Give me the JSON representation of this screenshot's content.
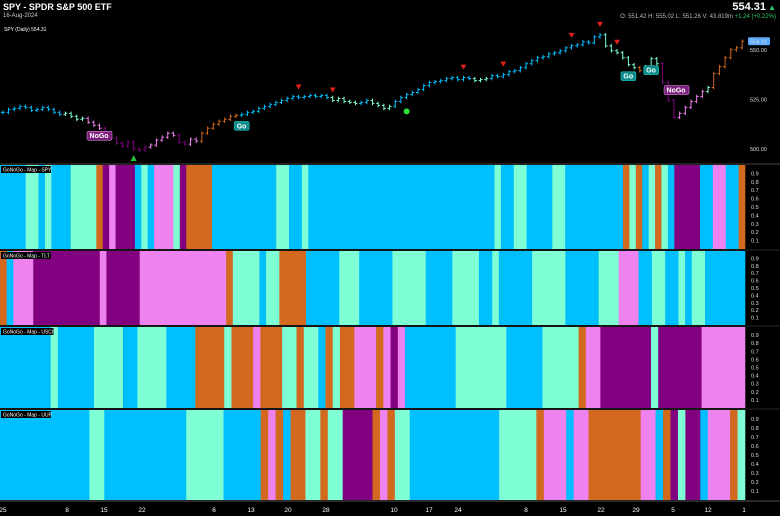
{
  "header": {
    "symbol_title": "SPY - SPDR S&P 500 ETF",
    "date": "16-Aug-2024",
    "last_price": "554.31",
    "ohlc_text": "O: 551.42   H: 555.02   L: 551.26   V: 43.819m",
    "change_text": "+1.24 (+0.22%)"
  },
  "colors": {
    "go_strong": "#00BFFF",
    "go_weak": "#7FFFD4",
    "nogo_strong": "#800080",
    "nogo_weak": "#EE82EE",
    "amber": "#D2691E",
    "bg": "#000000"
  },
  "chart_data": [
    {
      "type": "line",
      "panel": "price",
      "title": "SPY (Daily) 554.31",
      "price_tag": "554.31",
      "y_ticks": [
        500,
        525,
        550
      ],
      "y_tick_labels": [
        "500.00",
        "525.00",
        "550.00"
      ],
      "ylim": [
        493,
        565
      ],
      "x_tick_labels": [
        "25",
        "8",
        "15",
        "22",
        "6",
        "13",
        "20",
        "28",
        "10",
        "17",
        "24",
        "8",
        "15",
        "22",
        "29",
        "5",
        "12",
        "1"
      ],
      "annotations": [
        {
          "text": "NoGo",
          "kind": "nogo",
          "bar": 17
        },
        {
          "text": "Go",
          "kind": "go",
          "bar": 42
        },
        {
          "text": "Go",
          "kind": "go",
          "bar": 110
        },
        {
          "text": "Go",
          "kind": "go",
          "bar": 114
        },
        {
          "text": "NoGo",
          "kind": "nogo",
          "bar": 116
        }
      ],
      "bars": [
        {
          "c": 518.5,
          "k": "go"
        },
        {
          "c": 520.0,
          "k": "go"
        },
        {
          "c": 520.5,
          "k": "go"
        },
        {
          "c": 521.5,
          "k": "go"
        },
        {
          "c": 521.0,
          "k": "go"
        },
        {
          "c": 519.5,
          "k": "go"
        },
        {
          "c": 520.0,
          "k": "go"
        },
        {
          "c": 521.0,
          "k": "go"
        },
        {
          "c": 520.0,
          "k": "go"
        },
        {
          "c": 518.5,
          "k": "go"
        },
        {
          "c": 517.5,
          "k": "go"
        },
        {
          "c": 518.0,
          "k": "gw"
        },
        {
          "c": 516.5,
          "k": "gw"
        },
        {
          "c": 515.0,
          "k": "gw"
        },
        {
          "c": 515.5,
          "k": "gw"
        },
        {
          "c": 513.5,
          "k": "nw"
        },
        {
          "c": 512.0,
          "k": "nw"
        },
        {
          "c": 510.5,
          "k": "nw"
        },
        {
          "c": 508.0,
          "k": "ns"
        },
        {
          "c": 505.5,
          "k": "ns"
        },
        {
          "c": 503.0,
          "k": "ns"
        },
        {
          "c": 501.5,
          "k": "ns"
        },
        {
          "c": 503.5,
          "k": "ns"
        },
        {
          "c": 500.0,
          "k": "ns"
        },
        {
          "c": 499.5,
          "k": "ns"
        },
        {
          "c": 501.0,
          "k": "ns"
        },
        {
          "c": 502.0,
          "k": "nw"
        },
        {
          "c": 504.5,
          "k": "nw"
        },
        {
          "c": 506.0,
          "k": "nw"
        },
        {
          "c": 508.0,
          "k": "nw"
        },
        {
          "c": 507.0,
          "k": "nw"
        },
        {
          "c": 503.5,
          "k": "ns"
        },
        {
          "c": 502.5,
          "k": "ns"
        },
        {
          "c": 505.0,
          "k": "nw"
        },
        {
          "c": 504.0,
          "k": "nw"
        },
        {
          "c": 508.0,
          "k": "am"
        },
        {
          "c": 510.5,
          "k": "am"
        },
        {
          "c": 512.5,
          "k": "am"
        },
        {
          "c": 514.0,
          "k": "am"
        },
        {
          "c": 515.0,
          "k": "am"
        },
        {
          "c": 516.5,
          "k": "am"
        },
        {
          "c": 517.0,
          "k": "am"
        },
        {
          "c": 517.5,
          "k": "go"
        },
        {
          "c": 518.5,
          "k": "go"
        },
        {
          "c": 519.0,
          "k": "go"
        },
        {
          "c": 520.5,
          "k": "go"
        },
        {
          "c": 521.5,
          "k": "go"
        },
        {
          "c": 522.5,
          "k": "go"
        },
        {
          "c": 523.5,
          "k": "go"
        },
        {
          "c": 524.5,
          "k": "go"
        },
        {
          "c": 525.5,
          "k": "go"
        },
        {
          "c": 526.5,
          "k": "go"
        },
        {
          "c": 526.0,
          "k": "go"
        },
        {
          "c": 526.5,
          "k": "go"
        },
        {
          "c": 527.0,
          "k": "go"
        },
        {
          "c": 526.5,
          "k": "go"
        },
        {
          "c": 527.0,
          "k": "go"
        },
        {
          "c": 526.0,
          "k": "go"
        },
        {
          "c": 524.5,
          "k": "gw"
        },
        {
          "c": 525.5,
          "k": "gw"
        },
        {
          "c": 524.0,
          "k": "gw"
        },
        {
          "c": 523.5,
          "k": "gw"
        },
        {
          "c": 523.0,
          "k": "gw"
        },
        {
          "c": 523.5,
          "k": "go"
        },
        {
          "c": 524.5,
          "k": "go"
        },
        {
          "c": 523.0,
          "k": "gw"
        },
        {
          "c": 522.0,
          "k": "gw"
        },
        {
          "c": 520.5,
          "k": "gw"
        },
        {
          "c": 521.5,
          "k": "gw"
        },
        {
          "c": 524.0,
          "k": "go"
        },
        {
          "c": 526.0,
          "k": "go"
        },
        {
          "c": 527.5,
          "k": "go"
        },
        {
          "c": 528.5,
          "k": "go"
        },
        {
          "c": 530.0,
          "k": "go"
        },
        {
          "c": 532.0,
          "k": "go"
        },
        {
          "c": 533.5,
          "k": "go"
        },
        {
          "c": 534.0,
          "k": "go"
        },
        {
          "c": 534.5,
          "k": "go"
        },
        {
          "c": 535.5,
          "k": "go"
        },
        {
          "c": 536.0,
          "k": "go"
        },
        {
          "c": 535.0,
          "k": "go"
        },
        {
          "c": 536.0,
          "k": "go"
        },
        {
          "c": 535.5,
          "k": "go"
        },
        {
          "c": 534.5,
          "k": "gw"
        },
        {
          "c": 535.0,
          "k": "gw"
        },
        {
          "c": 535.5,
          "k": "gw"
        },
        {
          "c": 537.0,
          "k": "go"
        },
        {
          "c": 536.5,
          "k": "go"
        },
        {
          "c": 537.5,
          "k": "go"
        },
        {
          "c": 539.0,
          "k": "go"
        },
        {
          "c": 539.5,
          "k": "go"
        },
        {
          "c": 541.0,
          "k": "go"
        },
        {
          "c": 543.0,
          "k": "go"
        },
        {
          "c": 544.5,
          "k": "go"
        },
        {
          "c": 546.0,
          "k": "go"
        },
        {
          "c": 546.5,
          "k": "go"
        },
        {
          "c": 548.0,
          "k": "go"
        },
        {
          "c": 548.5,
          "k": "go"
        },
        {
          "c": 549.5,
          "k": "go"
        },
        {
          "c": 551.0,
          "k": "go"
        },
        {
          "c": 552.0,
          "k": "go"
        },
        {
          "c": 552.5,
          "k": "go"
        },
        {
          "c": 554.0,
          "k": "go"
        },
        {
          "c": 553.5,
          "k": "go"
        },
        {
          "c": 556.5,
          "k": "go"
        },
        {
          "c": 557.5,
          "k": "go"
        },
        {
          "c": 552.0,
          "k": "gw"
        },
        {
          "c": 549.5,
          "k": "gw"
        },
        {
          "c": 548.5,
          "k": "gw"
        },
        {
          "c": 546.0,
          "k": "gw"
        },
        {
          "c": 542.5,
          "k": "gw"
        },
        {
          "c": 541.0,
          "k": "gw"
        },
        {
          "c": 539.5,
          "k": "am"
        },
        {
          "c": 541.5,
          "k": "gw"
        },
        {
          "c": 545.5,
          "k": "gw"
        },
        {
          "c": 543.0,
          "k": "gw"
        },
        {
          "c": 533.5,
          "k": "ns"
        },
        {
          "c": 524.5,
          "k": "ns"
        },
        {
          "c": 516.0,
          "k": "ns"
        },
        {
          "c": 518.0,
          "k": "nw"
        },
        {
          "c": 521.0,
          "k": "nw"
        },
        {
          "c": 524.0,
          "k": "nw"
        },
        {
          "c": 526.5,
          "k": "nw"
        },
        {
          "c": 529.0,
          "k": "nw"
        },
        {
          "c": 531.0,
          "k": "gw"
        },
        {
          "c": 538.0,
          "k": "am"
        },
        {
          "c": 541.5,
          "k": "am"
        },
        {
          "c": 546.0,
          "k": "am"
        },
        {
          "c": 550.0,
          "k": "am"
        },
        {
          "c": 551.0,
          "k": "am"
        },
        {
          "c": 554.3,
          "k": "am"
        }
      ],
      "go_wave_markers": [
        {
          "bar": 23,
          "dir": "up",
          "color": "green"
        },
        {
          "bar": 52,
          "dir": "down",
          "color": "red"
        },
        {
          "bar": 58,
          "dir": "down",
          "color": "red"
        },
        {
          "bar": 81,
          "dir": "down",
          "color": "red"
        },
        {
          "bar": 88,
          "dir": "down",
          "color": "red"
        },
        {
          "bar": 100,
          "dir": "down",
          "color": "red"
        },
        {
          "bar": 105,
          "dir": "down",
          "color": "red"
        },
        {
          "bar": 108,
          "dir": "down",
          "color": "red"
        }
      ],
      "dot_markers": [
        {
          "bar": 71,
          "y": 519,
          "color": "green"
        }
      ]
    },
    {
      "type": "heatmap",
      "title": "GoNoGo - Map - SPY",
      "y_ticks": [
        "0.9",
        "0.8",
        "0.7",
        "0.6",
        "0.5",
        "0.4",
        "0.3",
        "0.2",
        "0.1"
      ],
      "segments": [
        [
          "go",
          4
        ],
        [
          "gw",
          2
        ],
        [
          "go",
          1
        ],
        [
          "gw",
          1
        ],
        [
          "go",
          3
        ],
        [
          "gw",
          4
        ],
        [
          "am",
          1
        ],
        [
          "ns",
          1
        ],
        [
          "nw",
          1
        ],
        [
          "ns",
          3
        ],
        [
          "go",
          1
        ],
        [
          "gw",
          1
        ],
        [
          "go",
          1
        ],
        [
          "nw",
          3
        ],
        [
          "gw",
          1
        ],
        [
          "ns",
          1
        ],
        [
          "am",
          4
        ],
        [
          "go",
          10
        ],
        [
          "gw",
          2
        ],
        [
          "go",
          2
        ],
        [
          "gw",
          1
        ],
        [
          "go",
          9
        ],
        [
          "go",
          10
        ],
        [
          "go",
          10
        ],
        [
          "gw",
          1
        ],
        [
          "go",
          2
        ],
        [
          "gw",
          2
        ],
        [
          "go",
          4
        ],
        [
          "gw",
          2
        ],
        [
          "go",
          5
        ],
        [
          "go",
          4
        ],
        [
          "am",
          1
        ],
        [
          "gw",
          1
        ],
        [
          "am",
          1
        ],
        [
          "go",
          1
        ],
        [
          "gw",
          1
        ],
        [
          "am",
          1
        ],
        [
          "gw",
          1
        ],
        [
          "go",
          1
        ],
        [
          "ns",
          4
        ],
        [
          "go",
          2
        ],
        [
          "nw",
          2
        ],
        [
          "go",
          2
        ],
        [
          "am",
          1
        ]
      ]
    },
    {
      "type": "heatmap",
      "title": "GoNoGo - Map - TLT",
      "y_ticks": [
        "0.9",
        "0.8",
        "0.7",
        "0.6",
        "0.5",
        "0.4",
        "0.3",
        "0.2",
        "0.1"
      ],
      "segments": [
        [
          "am",
          1
        ],
        [
          "go",
          1
        ],
        [
          "nw",
          3
        ],
        [
          "ns",
          10
        ],
        [
          "nw",
          1
        ],
        [
          "ns",
          2
        ],
        [
          "ns",
          3
        ],
        [
          "nw",
          2
        ],
        [
          "nw",
          11
        ],
        [
          "am",
          1
        ],
        [
          "gw",
          4
        ],
        [
          "go",
          1
        ],
        [
          "gw",
          2
        ],
        [
          "am",
          4
        ],
        [
          "go",
          5
        ],
        [
          "gw",
          3
        ],
        [
          "go",
          5
        ],
        [
          "gw",
          5
        ],
        [
          "go",
          4
        ],
        [
          "gw",
          4
        ],
        [
          "go",
          2
        ],
        [
          "gw",
          1
        ],
        [
          "go",
          5
        ],
        [
          "gw",
          5
        ],
        [
          "go",
          5
        ],
        [
          "gw",
          3
        ],
        [
          "nw",
          3
        ],
        [
          "go",
          2
        ],
        [
          "gw",
          2
        ],
        [
          "go",
          2
        ],
        [
          "gw",
          1
        ],
        [
          "go",
          1
        ],
        [
          "gw",
          2
        ],
        [
          "go",
          4
        ],
        [
          "go",
          2
        ]
      ]
    },
    {
      "type": "heatmap",
      "title": "GoNoGo - Map - USCI",
      "y_ticks": [
        "0.9",
        "0.8",
        "0.7",
        "0.6",
        "0.5",
        "0.4",
        "0.3",
        "0.2",
        "0.1"
      ],
      "segments": [
        [
          "go",
          7
        ],
        [
          "gw",
          1
        ],
        [
          "go",
          5
        ],
        [
          "gw",
          4
        ],
        [
          "go",
          2
        ],
        [
          "gw",
          4
        ],
        [
          "go",
          4
        ],
        [
          "am",
          4
        ],
        [
          "gw",
          1
        ],
        [
          "am",
          3
        ],
        [
          "nw",
          1
        ],
        [
          "am",
          3
        ],
        [
          "gw",
          2
        ],
        [
          "am",
          1
        ],
        [
          "gw",
          2
        ],
        [
          "go",
          1
        ],
        [
          "am",
          1
        ],
        [
          "gw",
          1
        ],
        [
          "am",
          2
        ],
        [
          "nw",
          3
        ],
        [
          "am",
          1
        ],
        [
          "nw",
          1
        ],
        [
          "ns",
          1
        ],
        [
          "nw",
          1
        ],
        [
          "go",
          7
        ],
        [
          "gw",
          7
        ],
        [
          "go",
          5
        ],
        [
          "gw",
          5
        ],
        [
          "am",
          1
        ],
        [
          "nw",
          2
        ],
        [
          "ns",
          7
        ],
        [
          "gw",
          1
        ],
        [
          "ns",
          6
        ],
        [
          "nw",
          6
        ]
      ]
    },
    {
      "type": "heatmap",
      "title": "GoNoGo - Map - UUP",
      "y_ticks": [
        "0.9",
        "0.8",
        "0.7",
        "0.6",
        "0.5",
        "0.4",
        "0.3",
        "0.2",
        "0.1"
      ],
      "segments": [
        [
          "go",
          12
        ],
        [
          "gw",
          2
        ],
        [
          "go",
          11
        ],
        [
          "gw",
          5
        ],
        [
          "go",
          5
        ],
        [
          "am",
          1
        ],
        [
          "nw",
          1
        ],
        [
          "am",
          1
        ],
        [
          "go",
          1
        ],
        [
          "am",
          2
        ],
        [
          "gw",
          2
        ],
        [
          "am",
          1
        ],
        [
          "gw",
          2
        ],
        [
          "ns",
          4
        ],
        [
          "am",
          1
        ],
        [
          "nw",
          1
        ],
        [
          "am",
          1
        ],
        [
          "gw",
          2
        ],
        [
          "go",
          12
        ],
        [
          "gw",
          5
        ],
        [
          "am",
          1
        ],
        [
          "nw",
          3
        ],
        [
          "go",
          1
        ],
        [
          "nw",
          2
        ],
        [
          "am",
          7
        ],
        [
          "nw",
          2
        ],
        [
          "go",
          1
        ],
        [
          "am",
          1
        ],
        [
          "ns",
          1
        ],
        [
          "gw",
          1
        ],
        [
          "ns",
          2
        ],
        [
          "go",
          1
        ],
        [
          "nw",
          3
        ],
        [
          "am",
          1
        ],
        [
          "gw",
          1
        ]
      ]
    }
  ]
}
